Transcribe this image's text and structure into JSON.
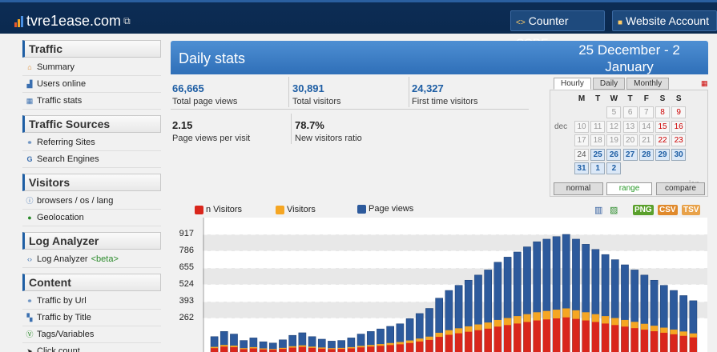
{
  "app": {
    "title": "tvre1ease.com"
  },
  "topbar": {
    "counter_code": "Counter CODE",
    "website_account": "Website Account"
  },
  "sidebar": {
    "sections": [
      {
        "title": "Traffic",
        "items": [
          {
            "label": "Summary",
            "icon": "home-icon"
          },
          {
            "label": "Users online",
            "icon": "users-icon"
          },
          {
            "label": "Traffic stats",
            "icon": "calendar-icon"
          }
        ]
      },
      {
        "title": "Traffic Sources",
        "items": [
          {
            "label": "Referring Sites",
            "icon": "link-icon"
          },
          {
            "label": "Search Engines",
            "icon": "google-icon"
          }
        ]
      },
      {
        "title": "Visitors",
        "items": [
          {
            "label": "browsers / os / lang",
            "icon": "info-icon"
          },
          {
            "label": "Geolocation",
            "icon": "globe-icon"
          }
        ]
      },
      {
        "title": "Log Analyzer",
        "items": [
          {
            "label": "Log Analyzer",
            "beta": "<beta>",
            "icon": "code-icon"
          }
        ]
      },
      {
        "title": "Content",
        "items": [
          {
            "label": "Traffic by Url",
            "icon": "link-icon"
          },
          {
            "label": "Traffic by Title",
            "icon": "grid-icon"
          },
          {
            "label": "Tags/Variables",
            "icon": "tag-icon"
          },
          {
            "label": "Click count",
            "icon": "cursor-icon"
          }
        ]
      }
    ]
  },
  "header": {
    "title": "Daily stats",
    "date_range": "25 December - 2 January"
  },
  "stats": [
    {
      "value": "66,665",
      "label": "Total page views"
    },
    {
      "value": "30,891",
      "label": "Total visitors"
    },
    {
      "value": "24,327",
      "label": "First time visitors"
    },
    {
      "value": "2.15",
      "label": "Page views per visit"
    },
    {
      "value": "78.7%",
      "label": "New visitors ratio"
    }
  ],
  "calendar": {
    "tabs": [
      "Hourly",
      "Daily",
      "Monthly"
    ],
    "active_tab": "Hourly",
    "days_of_week": [
      "M",
      "T",
      "W",
      "T",
      "F",
      "S",
      "S"
    ],
    "month_labels": [
      "dec",
      "jan"
    ],
    "rows": [
      [
        "",
        "",
        "5",
        "6",
        "7",
        "8",
        "9"
      ],
      [
        "10",
        "11",
        "12",
        "13",
        "14",
        "15",
        "16"
      ],
      [
        "17",
        "18",
        "19",
        "20",
        "21",
        "22",
        "23"
      ],
      [
        "24",
        "25",
        "26",
        "27",
        "28",
        "29",
        "30"
      ],
      [
        "31",
        "1",
        "2",
        "",
        "",
        "",
        ""
      ]
    ],
    "modes": [
      "normal",
      "range",
      "compare"
    ],
    "active_mode": "range"
  },
  "chart": {
    "legend": [
      {
        "label": "n Visitors",
        "color": "#d9261c"
      },
      {
        "label": "Visitors",
        "color": "#f5a623"
      },
      {
        "label": "Page views",
        "color": "#2d5a9c"
      }
    ],
    "export_buttons": [
      {
        "label": "PNG",
        "color": "#5aa02c"
      },
      {
        "label": "CSV",
        "color": "#e08a2c"
      },
      {
        "label": "TSV",
        "color": "#e8a24a"
      }
    ]
  },
  "chart_data": {
    "type": "bar",
    "title": "",
    "xlabel": "",
    "ylabel": "",
    "y_ticks": [
      917,
      786,
      655,
      524,
      393,
      262
    ],
    "ylim": [
      0,
      1048
    ],
    "series": [
      {
        "name": "Page views",
        "values": [
          120,
          160,
          140,
          90,
          110,
          80,
          70,
          95,
          130,
          150,
          120,
          100,
          85,
          90,
          110,
          140,
          160,
          180,
          200,
          220,
          260,
          300,
          340,
          420,
          480,
          520,
          560,
          600,
          640,
          700,
          740,
          780,
          820,
          860,
          880,
          900,
          917,
          880,
          840,
          800,
          760,
          720,
          680,
          640,
          600,
          560,
          520,
          480,
          440,
          400
        ]
      },
      {
        "name": "Visitors",
        "values": [
          40,
          55,
          50,
          30,
          38,
          28,
          24,
          32,
          45,
          52,
          42,
          35,
          30,
          32,
          38,
          48,
          55,
          62,
          70,
          78,
          90,
          105,
          120,
          150,
          170,
          185,
          200,
          215,
          230,
          250,
          265,
          280,
          295,
          310,
          320,
          330,
          340,
          325,
          310,
          295,
          280,
          265,
          250,
          235,
          220,
          205,
          190,
          175,
          160,
          145
        ]
      },
      {
        "name": "n Visitors",
        "values": [
          30,
          42,
          38,
          22,
          28,
          20,
          18,
          24,
          34,
          40,
          32,
          26,
          22,
          24,
          28,
          36,
          42,
          48,
          54,
          60,
          70,
          82,
          94,
          118,
          134,
          146,
          158,
          170,
          182,
          198,
          210,
          222,
          234,
          246,
          254,
          262,
          270,
          258,
          246,
          234,
          222,
          210,
          198,
          186,
          174,
          162,
          150,
          138,
          126,
          114
        ]
      }
    ]
  }
}
